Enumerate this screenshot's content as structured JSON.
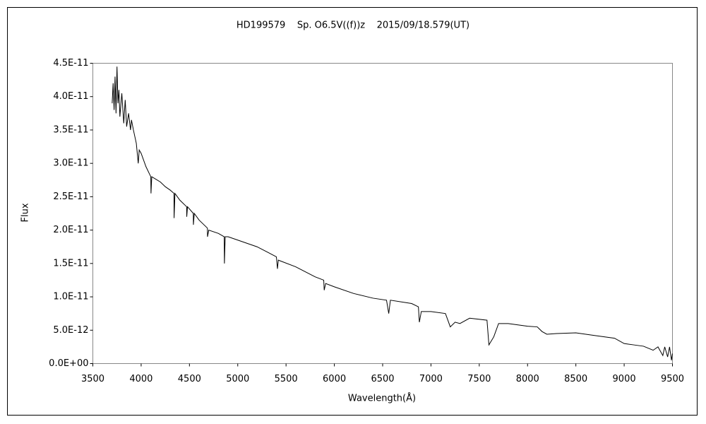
{
  "chart_data": {
    "type": "line",
    "title": "HD199579    Sp. O6.5V((f))z    2015/09/18.579(UT)",
    "x_label": "Wavelength(Å)",
    "y_label": "Flux",
    "color": "#000000",
    "grid": false,
    "x": [
      3700,
      3710,
      3720,
      3730,
      3740,
      3750,
      3760,
      3770,
      3780,
      3800,
      3820,
      3835,
      3850,
      3870,
      3890,
      3900,
      3920,
      3950,
      3970,
      3980,
      4000,
      4050,
      4100,
      4102,
      4110,
      4200,
      4250,
      4300,
      4340,
      4341,
      4350,
      4400,
      4471,
      4472,
      4480,
      4540,
      4541,
      4550,
      4600,
      4686,
      4687,
      4700,
      4800,
      4860,
      4862,
      4870,
      4900,
      5000,
      5200,
      5400,
      5411,
      5420,
      5600,
      5800,
      5890,
      5895,
      5910,
      6000,
      6200,
      6400,
      6540,
      6563,
      6580,
      6800,
      6870,
      6880,
      6900,
      7000,
      7150,
      7200,
      7250,
      7300,
      7400,
      7580,
      7600,
      7650,
      7700,
      7800,
      8000,
      8100,
      8150,
      8200,
      8300,
      8500,
      8700,
      8900,
      9000,
      9100,
      9200,
      9300,
      9350,
      9400,
      9420,
      9450,
      9470,
      9490,
      9500
    ],
    "values": [
      3.9e-11,
      4.2e-11,
      3.8e-11,
      4.3e-11,
      3.75e-11,
      4.45e-11,
      3.9e-11,
      4.1e-11,
      3.7e-11,
      4.05e-11,
      3.6e-11,
      3.95e-11,
      3.55e-11,
      3.75e-11,
      3.5e-11,
      3.65e-11,
      3.5e-11,
      3.3e-11,
      3e-11,
      3.2e-11,
      3.15e-11,
      2.95e-11,
      2.8e-11,
      2.55e-11,
      2.8e-11,
      2.72e-11,
      2.65e-11,
      2.6e-11,
      2.55e-11,
      2.18e-11,
      2.55e-11,
      2.45e-11,
      2.35e-11,
      2.2e-11,
      2.35e-11,
      2.25e-11,
      2.08e-11,
      2.25e-11,
      2.15e-11,
      2.03e-11,
      1.9e-11,
      2e-11,
      1.95e-11,
      1.9e-11,
      1.5e-11,
      1.9e-11,
      1.9e-11,
      1.85e-11,
      1.75e-11,
      1.6e-11,
      1.42e-11,
      1.55e-11,
      1.45e-11,
      1.3e-11,
      1.25e-11,
      1.1e-11,
      1.2e-11,
      1.15e-11,
      1.05e-11,
      9.8e-12,
      9.5e-12,
      7.5e-12,
      9.5e-12,
      9e-12,
      8.5e-12,
      6.2e-12,
      7.8e-12,
      7.8e-12,
      7.5e-12,
      5.5e-12,
      6.2e-12,
      6e-12,
      6.8e-12,
      6.5e-12,
      2.8e-12,
      4e-12,
      6e-12,
      6e-12,
      5.6e-12,
      5.5e-12,
      4.8e-12,
      4.4e-12,
      4.5e-12,
      4.6e-12,
      4.2e-12,
      3.8e-12,
      3e-12,
      2.8e-12,
      2.6e-12,
      2e-12,
      2.5e-12,
      1.2e-12,
      2.5e-12,
      1e-12,
      2.5e-12,
      5e-13,
      1.5e-12
    ],
    "xlim": [
      3500,
      9500
    ],
    "xticks": [
      3500,
      4000,
      4500,
      5000,
      5500,
      6000,
      6500,
      7000,
      7500,
      8000,
      8500,
      9000,
      9500
    ],
    "ylim": [
      0,
      4.5e-11
    ],
    "yticks": [
      {
        "value": 0,
        "label": "0.0E+00"
      },
      {
        "value": 5e-12,
        "label": "5.0E-12"
      },
      {
        "value": 1e-11,
        "label": "1.0E-11"
      },
      {
        "value": 1.5e-11,
        "label": "1.5E-11"
      },
      {
        "value": 2e-11,
        "label": "2.0E-11"
      },
      {
        "value": 2.5e-11,
        "label": "2.5E-11"
      },
      {
        "value": 3e-11,
        "label": "3.0E-11"
      },
      {
        "value": 3.5e-11,
        "label": "3.5E-11"
      },
      {
        "value": 4e-11,
        "label": "4.0E-11"
      },
      {
        "value": 4.5e-11,
        "label": "4.5E-11"
      }
    ]
  }
}
